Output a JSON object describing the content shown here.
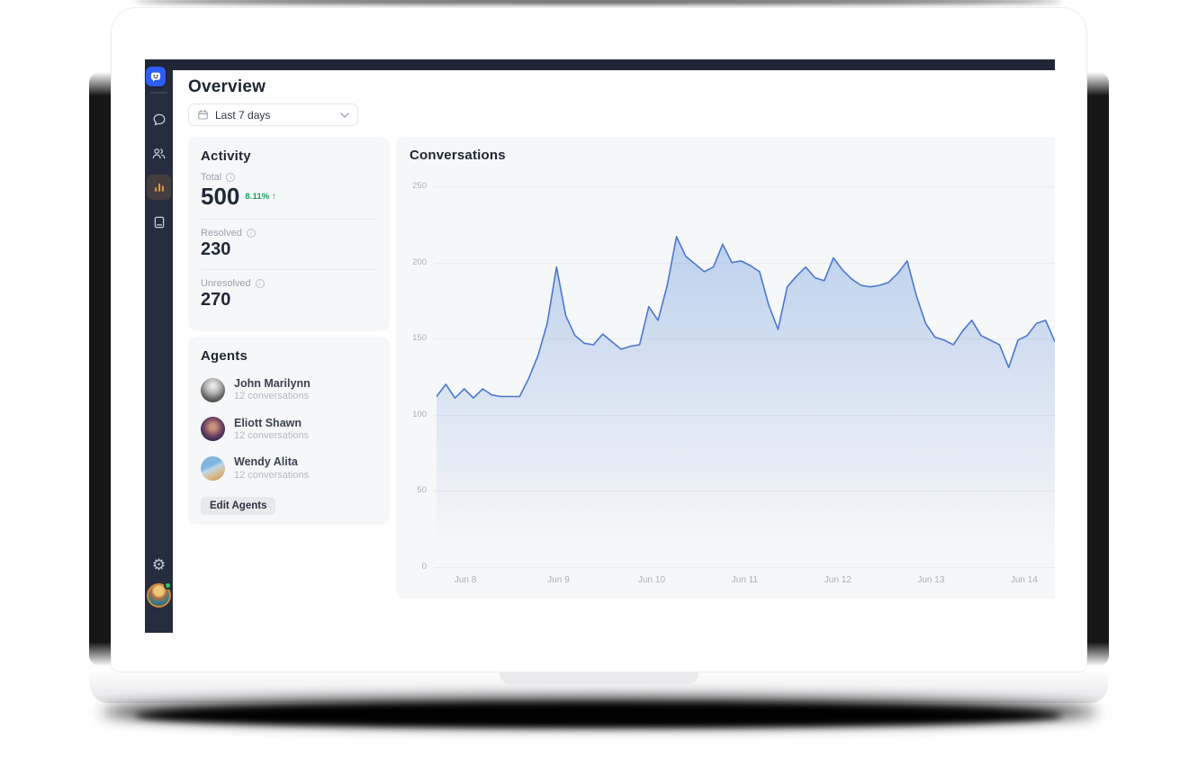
{
  "header": {
    "title": "Overview",
    "date_filter": {
      "label": "Last 7 days"
    }
  },
  "sidebar": {
    "nav": [
      {
        "id": "chats",
        "icon": "chat-bubble-icon",
        "active": false
      },
      {
        "id": "contacts",
        "icon": "users-icon",
        "active": false
      },
      {
        "id": "analytics",
        "icon": "bar-chart-icon",
        "active": true
      },
      {
        "id": "knowledge-base",
        "icon": "book-icon",
        "active": false
      }
    ],
    "settings_icon_glyph": "⚙",
    "user_status": "online"
  },
  "activity": {
    "title": "Activity",
    "stats": [
      {
        "label": "Total",
        "value": "500",
        "trend": "8.11%",
        "trend_arrow": "↑",
        "trend_dir": "up"
      },
      {
        "label": "Resolved",
        "value": "230"
      },
      {
        "label": "Unresolved",
        "value": "270"
      }
    ]
  },
  "agents": {
    "title": "Agents",
    "list": [
      {
        "name": "John Marilynn",
        "meta": "12 conversations"
      },
      {
        "name": "Eliott Shawn",
        "meta": "12 conversations"
      },
      {
        "name": "Wendy Alita",
        "meta": "12 conversations"
      }
    ],
    "edit_button": "Edit Agents"
  },
  "chart_data": {
    "type": "area",
    "title": "Conversations",
    "x_tick_labels": [
      "Jun 8",
      "Jun 9",
      "Jun 10",
      "Jun 11",
      "Jun 12",
      "Jun 13",
      "Jun 14"
    ],
    "x_tick_days": [
      0,
      1,
      2,
      3,
      4,
      5,
      6
    ],
    "x_range_days": [
      -0.31,
      6.33
    ],
    "ylim": [
      0,
      250
    ],
    "y_ticks": [
      0,
      50,
      100,
      150,
      200,
      250
    ],
    "grid": "horizontal",
    "legend": "none",
    "series": [
      {
        "name": "Conversations",
        "values": [
          112,
          120,
          111,
          117,
          111,
          117,
          113,
          112,
          112,
          112,
          124,
          139,
          160,
          197,
          165,
          152,
          147,
          146,
          153,
          148,
          143,
          145,
          146,
          171,
          162,
          185,
          217,
          204,
          199,
          194,
          197,
          212,
          200,
          201,
          198,
          194,
          172,
          156,
          184,
          191,
          197,
          190,
          188,
          203,
          195,
          189,
          185,
          184,
          185,
          187,
          193,
          201,
          178,
          160,
          151,
          149,
          146,
          155,
          162,
          152,
          149,
          146,
          131,
          149,
          152,
          160,
          162,
          148
        ]
      }
    ]
  },
  "colors": {
    "accent_blue": "#2e5cf6",
    "topbar": "#1f2637",
    "sidebar": "#262d3e",
    "active_icon_orange": "#dd9642",
    "positive_green": "#17a05e",
    "chart_line": "#4a78d0",
    "chart_fill": "#7ea6e0"
  }
}
